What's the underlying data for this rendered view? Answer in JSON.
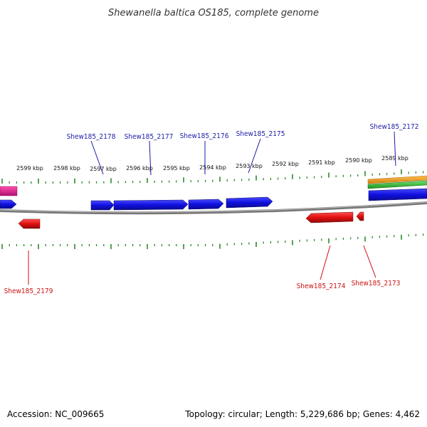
{
  "title": "Shewanella baltica OS185, complete genome",
  "footer": {
    "accession": "Accession: NC_009665",
    "summary": "Topology: circular; Length: 5,229,686 bp; Genes: 4,462"
  },
  "colors": {
    "forward_gene": "#1010e0",
    "reverse_gene": "#e01010",
    "backbone": "#888888",
    "ticks": "#2a8a2a",
    "label_fwd": "#1a1aa8",
    "label_rev": "#cc1111",
    "feature_orange": "#f0a020",
    "feature_green": "#40c040",
    "feature_pink": "#e0208a"
  },
  "scale_labels": [
    "2599 kbp",
    "2598 kbp",
    "2597 kbp",
    "2596 kbp",
    "2595 kbp",
    "2594 kbp",
    "2593 kbp",
    "2592 kbp",
    "2591 kbp",
    "2590 kbp",
    "2589 kbp"
  ],
  "forward_labels": [
    "Shew185_2178",
    "Shew185_2177",
    "Shew185_2176",
    "Shew185_2175",
    "Shew185_2172"
  ],
  "reverse_labels": [
    "Shew185_2179",
    "Shew185_2174",
    "Shew185_2173"
  ]
}
